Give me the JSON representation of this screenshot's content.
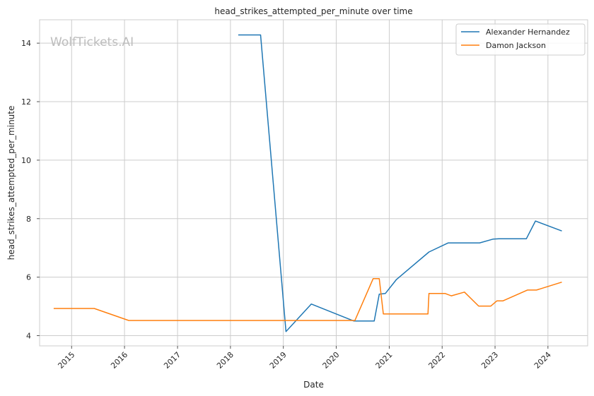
{
  "chart_data": {
    "type": "line",
    "title": "head_strikes_attempted_per_minute over time",
    "xlabel": "Date",
    "ylabel": "head_strikes_attempted_per_minute",
    "watermark": "WolfTickets.AI",
    "xlim": [
      "2014-05-25",
      "2024-10-01"
    ],
    "ylim": [
      3.65,
      14.8
    ],
    "x_ticks": [
      "2015",
      "2016",
      "2017",
      "2018",
      "2019",
      "2020",
      "2021",
      "2022",
      "2023",
      "2024"
    ],
    "y_ticks": [
      4,
      6,
      8,
      10,
      12,
      14
    ],
    "grid": true,
    "legend_position": "top-right",
    "series": [
      {
        "name": "Alexander Hernandez",
        "color": "#1f77b4",
        "points": [
          [
            "2018-02-24",
            14.28
          ],
          [
            "2018-07-28",
            14.28
          ],
          [
            "2019-01-19",
            4.14
          ],
          [
            "2019-07-13",
            5.08
          ],
          [
            "2020-05-02",
            4.5
          ],
          [
            "2020-09-19",
            4.5
          ],
          [
            "2020-10-24",
            5.42
          ],
          [
            "2020-12-05",
            5.44
          ],
          [
            "2021-02-20",
            5.92
          ],
          [
            "2021-10-02",
            6.86
          ],
          [
            "2022-02-12",
            7.17
          ],
          [
            "2022-09-17",
            7.17
          ],
          [
            "2022-12-17",
            7.3
          ],
          [
            "2023-01-28",
            7.31
          ],
          [
            "2023-08-05",
            7.31
          ],
          [
            "2023-10-07",
            7.92
          ],
          [
            "2024-04-06",
            7.58
          ]
        ]
      },
      {
        "name": "Damon Jackson",
        "color": "#ff7f0e",
        "points": [
          [
            "2014-08-30",
            4.93
          ],
          [
            "2015-06-06",
            4.93
          ],
          [
            "2016-01-30",
            4.52
          ],
          [
            "2020-05-09",
            4.52
          ],
          [
            "2020-09-12",
            5.95
          ],
          [
            "2020-10-24",
            5.95
          ],
          [
            "2020-11-21",
            4.74
          ],
          [
            "2021-09-25",
            4.74
          ],
          [
            "2021-10-02",
            5.44
          ],
          [
            "2022-01-22",
            5.44
          ],
          [
            "2022-03-05",
            5.36
          ],
          [
            "2022-06-04",
            5.49
          ],
          [
            "2022-09-10",
            5.01
          ],
          [
            "2022-12-03",
            5.01
          ],
          [
            "2023-01-14",
            5.19
          ],
          [
            "2023-02-25",
            5.19
          ],
          [
            "2023-08-12",
            5.56
          ],
          [
            "2023-10-14",
            5.56
          ],
          [
            "2024-04-06",
            5.83
          ]
        ]
      }
    ]
  }
}
